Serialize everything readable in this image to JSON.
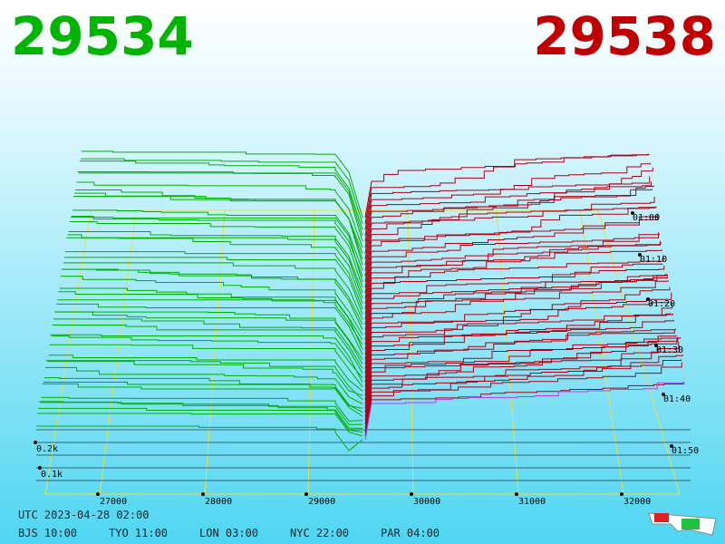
{
  "header": {
    "bid": "29534",
    "ask": "29538"
  },
  "price_axis": {
    "labels": [
      "27000",
      "28000",
      "29000",
      "30000",
      "31000",
      "32000"
    ]
  },
  "volume_axis": {
    "labels": [
      "0.2k",
      "0.1k"
    ]
  },
  "time_axis": {
    "labels": [
      "01:00",
      "01:10",
      "01:20",
      "01:30",
      "01:40",
      "01:50"
    ]
  },
  "clock": {
    "utc": "UTC 2023-04-28 02:00",
    "zones": [
      "BJS 10:00",
      "TYO 11:00",
      "LON 03:00",
      "NYC 22:00",
      "PAR 04:00"
    ]
  }
}
